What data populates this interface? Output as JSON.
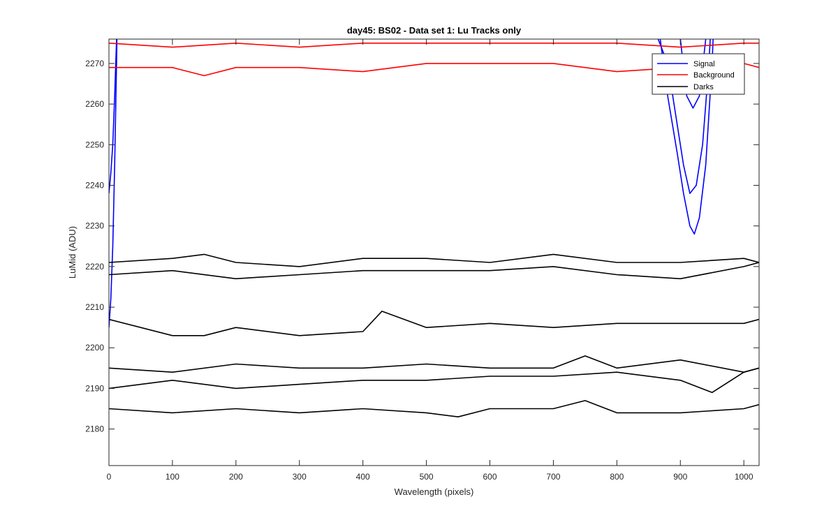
{
  "chart_data": {
    "type": "line",
    "title": "day45: BS02 - Data set 1: Lu Tracks only",
    "xlabel": "Wavelength (pixels)",
    "ylabel": "LuMid (ADU)",
    "xlim": [
      0,
      1024
    ],
    "ylim": [
      2171,
      2276
    ],
    "xticks": [
      0,
      100,
      200,
      300,
      400,
      500,
      600,
      700,
      800,
      900,
      1000
    ],
    "yticks": [
      2180,
      2190,
      2200,
      2210,
      2220,
      2230,
      2240,
      2250,
      2260,
      2270
    ],
    "grid": false,
    "legend_position": "top-right",
    "legend": [
      {
        "label": "Signal",
        "color": "#0000ff"
      },
      {
        "label": "Background",
        "color": "#ff0000"
      },
      {
        "label": "Darks",
        "color": "#000000"
      }
    ],
    "series": [
      {
        "name": "Signal",
        "color": "#0000ff",
        "x": [
          0,
          3,
          6,
          9,
          12,
          15,
          850,
          865,
          880,
          895,
          905,
          915,
          925,
          935,
          945,
          955
        ],
        "y": [
          2238,
          2243,
          2250,
          2262,
          2276,
          2300,
          2300,
          2276,
          2270,
          2255,
          2245,
          2238,
          2240,
          2250,
          2270,
          2300
        ]
      },
      {
        "name": "Signal",
        "color": "#0000ff",
        "x": [
          0,
          3,
          6,
          9,
          12,
          15,
          850,
          865,
          880,
          895,
          905,
          915,
          922,
          930,
          940,
          950,
          958
        ],
        "y": [
          2205,
          2212,
          2225,
          2245,
          2270,
          2300,
          2300,
          2280,
          2262,
          2248,
          2238,
          2230,
          2228,
          2232,
          2245,
          2270,
          2300
        ]
      },
      {
        "name": "Signal",
        "color": "#0000ff",
        "x": [
          890,
          900,
          910,
          920,
          930,
          940,
          950
        ],
        "y": [
          2300,
          2276,
          2262,
          2259,
          2262,
          2276,
          2300
        ]
      },
      {
        "name": "Background",
        "color": "#ff0000",
        "x": [
          0,
          100,
          200,
          300,
          400,
          500,
          600,
          700,
          800,
          900,
          1000,
          1024
        ],
        "y": [
          2275,
          2274,
          2275,
          2274,
          2275,
          2275,
          2275,
          2275,
          2275,
          2274,
          2275,
          2275
        ]
      },
      {
        "name": "Background",
        "color": "#ff0000",
        "x": [
          0,
          100,
          150,
          200,
          300,
          400,
          500,
          600,
          700,
          800,
          900,
          1000,
          1024
        ],
        "y": [
          2269,
          2269,
          2267,
          2269,
          2269,
          2268,
          2270,
          2270,
          2270,
          2268,
          2269,
          2270,
          2269
        ]
      },
      {
        "name": "Darks",
        "color": "#000000",
        "x": [
          0,
          100,
          150,
          200,
          300,
          400,
          500,
          600,
          700,
          800,
          900,
          1000,
          1024
        ],
        "y": [
          2221,
          2222,
          2223,
          2221,
          2220,
          2222,
          2222,
          2221,
          2223,
          2221,
          2221,
          2222,
          2221
        ]
      },
      {
        "name": "Darks",
        "color": "#000000",
        "x": [
          0,
          100,
          200,
          300,
          400,
          500,
          600,
          700,
          800,
          900,
          1000,
          1024
        ],
        "y": [
          2218,
          2219,
          2217,
          2218,
          2219,
          2219,
          2219,
          2220,
          2218,
          2217,
          2220,
          2221
        ]
      },
      {
        "name": "Darks",
        "color": "#000000",
        "x": [
          0,
          100,
          150,
          200,
          300,
          400,
          430,
          500,
          600,
          700,
          800,
          900,
          1000,
          1024
        ],
        "y": [
          2207,
          2203,
          2203,
          2205,
          2203,
          2204,
          2209,
          2205,
          2206,
          2205,
          2206,
          2206,
          2206,
          2207
        ]
      },
      {
        "name": "Darks",
        "color": "#000000",
        "x": [
          0,
          100,
          200,
          300,
          400,
          500,
          600,
          700,
          750,
          800,
          900,
          1000,
          1024
        ],
        "y": [
          2195,
          2194,
          2196,
          2195,
          2195,
          2196,
          2195,
          2195,
          2198,
          2195,
          2197,
          2194,
          2195
        ]
      },
      {
        "name": "Darks",
        "color": "#000000",
        "x": [
          0,
          100,
          200,
          300,
          400,
          500,
          600,
          700,
          800,
          900,
          950,
          1000,
          1024
        ],
        "y": [
          2190,
          2192,
          2190,
          2191,
          2192,
          2192,
          2193,
          2193,
          2194,
          2192,
          2189,
          2194,
          2195
        ]
      },
      {
        "name": "Darks",
        "color": "#000000",
        "x": [
          0,
          100,
          200,
          300,
          400,
          500,
          550,
          600,
          700,
          750,
          800,
          900,
          1000,
          1024
        ],
        "y": [
          2185,
          2184,
          2185,
          2184,
          2185,
          2184,
          2183,
          2185,
          2185,
          2187,
          2184,
          2184,
          2185,
          2186
        ]
      }
    ]
  }
}
